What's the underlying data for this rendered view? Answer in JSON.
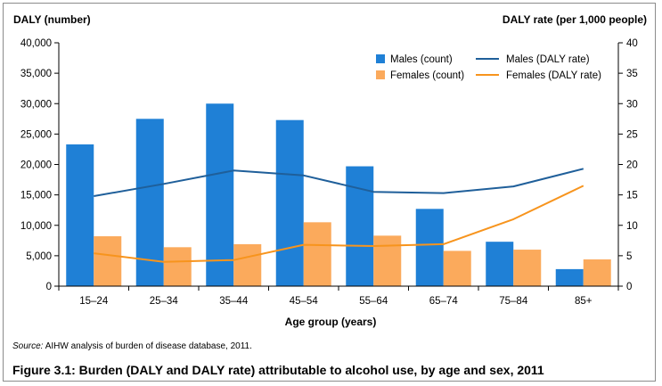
{
  "chart_data": {
    "type": "bar",
    "categories": [
      "15–24",
      "25–34",
      "35–44",
      "45–54",
      "55–64",
      "65–74",
      "75–84",
      "85+"
    ],
    "series": [
      {
        "name": "Males (count)",
        "kind": "bar",
        "axis": "left",
        "color": "#1f80d6",
        "values": [
          23300,
          27500,
          30000,
          27300,
          19700,
          12700,
          7300,
          2800
        ]
      },
      {
        "name": "Females (count)",
        "kind": "bar",
        "axis": "left",
        "color": "#fbaa5c",
        "values": [
          8200,
          6400,
          6900,
          10500,
          8300,
          5800,
          6000,
          4400
        ]
      },
      {
        "name": "Males (DALY rate)",
        "kind": "line",
        "axis": "right",
        "color": "#1f5f9a",
        "values": [
          14.8,
          16.8,
          19.0,
          18.2,
          15.5,
          15.3,
          16.4,
          19.3
        ]
      },
      {
        "name": "Females (DALY rate)",
        "kind": "line",
        "axis": "right",
        "color": "#f7941d",
        "values": [
          5.4,
          4.0,
          4.3,
          6.8,
          6.6,
          6.9,
          11.0,
          16.5
        ]
      }
    ],
    "ylabel": "DALY (number)",
    "y2label": "DALY rate (per 1,000 people)",
    "xlabel": "Age group (years)",
    "ylim": [
      0,
      40000
    ],
    "y2lim": [
      0,
      40
    ],
    "yticks": [
      "0",
      "5,000",
      "10,000",
      "15,000",
      "20,000",
      "25,000",
      "30,000",
      "35,000",
      "40,000"
    ],
    "y2ticks": [
      "0",
      "5",
      "10",
      "15",
      "20",
      "25",
      "30",
      "35",
      "40"
    ],
    "grid": false,
    "legend": "top-right"
  },
  "source": {
    "label": "Source:",
    "text": "AIHW analysis of burden of disease database, 2011."
  },
  "caption": "Figure 3.1: Burden (DALY and DALY rate) attributable to alcohol use, by age and sex, 2011"
}
